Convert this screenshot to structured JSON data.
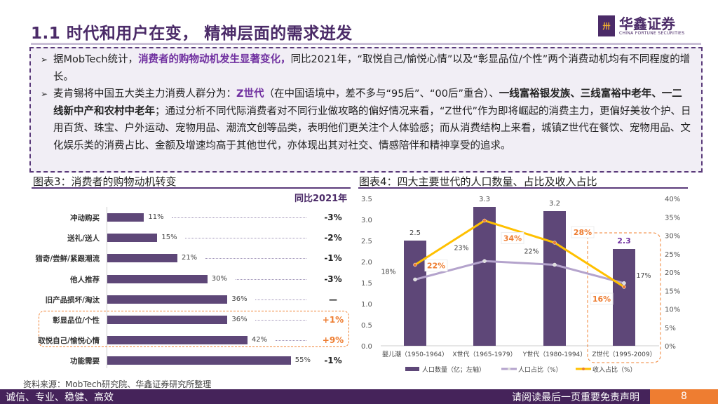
{
  "header": {
    "title": "1.1 时代和用户在变， 精神层面的需求迸发",
    "logo_cn": "华鑫证券",
    "logo_en": "CHINA FORTUNE SECURITIES"
  },
  "bullets": [
    {
      "parts": [
        {
          "t": "据MobTech统计，",
          "s": ""
        },
        {
          "t": "消费者的购物动机发生显著变化，",
          "s": "hl"
        },
        {
          "t": "同比2021年，“取悦自己/愉悦心情”以及“彰显品位/个性”两个消费动机均有不同程度的增长。",
          "s": ""
        }
      ]
    },
    {
      "parts": [
        {
          "t": "麦肯锡将中国五大类主力消费人群分为：",
          "s": ""
        },
        {
          "t": "Z世代",
          "s": "hl"
        },
        {
          "t": "（在中国语境中，差不多与“95后”、“00后”重合）、",
          "s": ""
        },
        {
          "t": "一线富裕银发族、三线富裕中老年、一二线新中产和农村中老年",
          "s": "b"
        },
        {
          "t": "；通过分析不同代际消费者对不同行业做攻略的偏好情况来看，“Z世代”作为即将崛起的消费主力，更偏好美妆个护、日用百货、珠宝、户外运动、宠物用品、潮流文创等品类，表明他们更关注个人体验感；而从消费结构上来看，城镇Z世代在餐饮、宠物用品、文化娱乐类的消费占比、金额及增速均高于其他世代，亦体现出其对社交、情感陪伴和精神享受的追求。",
          "s": ""
        }
      ]
    }
  ],
  "chart_data": [
    {
      "type": "bar",
      "orientation": "horizontal",
      "title": "图表3：消费者的购物动机转变",
      "yoy_header": "同比2021年",
      "categories": [
        "冲动购买",
        "送礼/送人",
        "猎奇/尝鲜/紧跟潮流",
        "他人推荐",
        "旧产品损坏/淘汰",
        "彰显品位/个性",
        "取悦自己/愉悦心情",
        "功能需要"
      ],
      "values": [
        11,
        15,
        21,
        30,
        36,
        36,
        42,
        55
      ],
      "value_labels": [
        "11%",
        "15%",
        "21%",
        "30%",
        "36%",
        "36%",
        "42%",
        "55%"
      ],
      "yoy": [
        "-3%",
        "-2%",
        "-1%",
        "-3%",
        "—",
        "+1%",
        "+9%",
        "-1%"
      ],
      "highlighted": [
        "彰显品位/个性",
        "取悦自己/愉悦心情"
      ],
      "colors": {
        "bar": "#5e4778",
        "positive": "#ee7d31",
        "negative": "#222222",
        "highlight_box": "#f08030"
      }
    },
    {
      "type": "bar+line",
      "title": "图表4：四大主要世代的人口数量、占比及收入占比",
      "categories": [
        "婴儿潮（1950-1964）",
        "X世代（1965-1979）",
        "Y世代（1980-1994）",
        "Z世代（1995-2009）"
      ],
      "y_left": {
        "range": [
          0,
          3.5
        ],
        "ticks": [
          "0.0",
          "0.5",
          "1.0",
          "1.5",
          "2.0",
          "2.5",
          "3.0",
          "3.5"
        ]
      },
      "y_right": {
        "range": [
          0,
          40
        ],
        "ticks": [
          "0%",
          "5%",
          "10%",
          "15%",
          "20%",
          "25%",
          "30%",
          "35%",
          "40%"
        ]
      },
      "series": [
        {
          "name": "人口数量（亿；左轴）",
          "type": "bar",
          "axis": "left",
          "values": [
            2.5,
            3.3,
            3.2,
            2.3
          ],
          "labels": [
            "2.5",
            "3.3",
            "3.2",
            "2.3"
          ],
          "color": "#5e4778"
        },
        {
          "name": "人口占比（%）",
          "type": "line",
          "axis": "right",
          "values": [
            18,
            23,
            22,
            17
          ],
          "labels": [
            "18%",
            "23%",
            "22%",
            "17%"
          ],
          "color": "#b4a3cc"
        },
        {
          "name": "收入占比（%）",
          "type": "line",
          "axis": "right",
          "values": [
            22,
            34,
            28,
            16
          ],
          "labels": [
            "22%",
            "34%",
            "28%",
            "16%"
          ],
          "color": "#ffc000",
          "marker_color": "#ee7d31"
        }
      ],
      "highlighted": "Z世代（1995-2009）"
    }
  ],
  "source": "资料来源：MobTech研究院、华鑫证券研究所整理",
  "footer": {
    "left": "诚信、专业、稳健、高效",
    "right": "请阅读最后一页重要免责声明",
    "page": "8"
  }
}
